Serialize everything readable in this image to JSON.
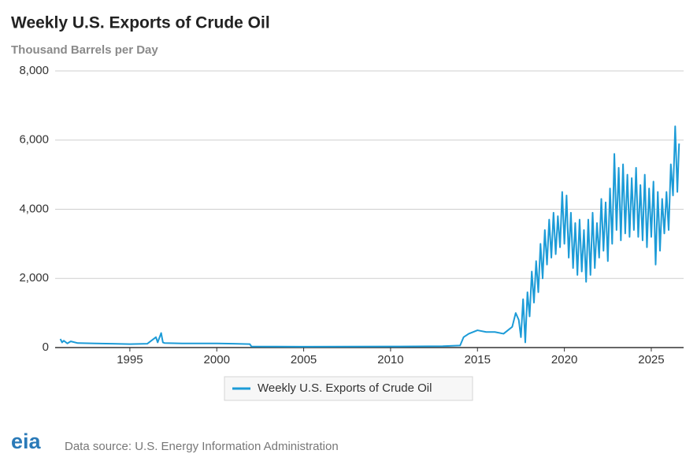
{
  "chart_data": {
    "type": "line",
    "title": "Weekly U.S. Exports of Crude Oil",
    "subtitle": "Thousand Barrels per Day",
    "source": "Data source: U.S. Energy Information Administration",
    "logo": "eia",
    "xlim": [
      1990.7,
      2026.86
    ],
    "xticks": [
      1995,
      2000,
      2005,
      2010,
      2015,
      2020,
      2025
    ],
    "ylim": [
      0,
      8000
    ],
    "yticks": [
      0,
      {
        "value": 2000,
        "label": "2,000"
      },
      {
        "value": 4000,
        "label": "4,000"
      },
      {
        "value": 6000,
        "label": "6,000"
      },
      {
        "value": 8000,
        "label": "8,000"
      }
    ],
    "grid": true,
    "x": [
      1991.0,
      1991.1,
      1991.2,
      1991.4,
      1991.6,
      1992,
      1993,
      1994,
      1995,
      1996,
      1996.5,
      1996.6,
      1996.8,
      1996.9,
      1997,
      1998,
      1999,
      2000,
      2001,
      2001.9,
      2002,
      2005,
      2010,
      2013,
      2014,
      2014.2,
      2014.5,
      2015,
      2015.5,
      2016,
      2016.5,
      2017,
      2017.2,
      2017.375,
      2017.5,
      2017.625,
      2017.75,
      2017.875,
      2018,
      2018.125,
      2018.25,
      2018.375,
      2018.5,
      2018.625,
      2018.75,
      2018.875,
      2019,
      2019.125,
      2019.25,
      2019.375,
      2019.5,
      2019.625,
      2019.75,
      2019.875,
      2020,
      2020.125,
      2020.25,
      2020.375,
      2020.5,
      2020.625,
      2020.75,
      2020.875,
      2021,
      2021.125,
      2021.25,
      2021.375,
      2021.5,
      2021.625,
      2021.75,
      2021.875,
      2022,
      2022.125,
      2022.25,
      2022.375,
      2022.5,
      2022.625,
      2022.75,
      2022.875,
      2023,
      2023.125,
      2023.25,
      2023.375,
      2023.5,
      2023.625,
      2023.75,
      2023.875,
      2024,
      2024.125,
      2024.25,
      2024.375,
      2024.5,
      2024.625,
      2024.75,
      2024.875,
      2025,
      2025.125,
      2025.25,
      2025.375,
      2025.5,
      2025.625,
      2025.75,
      2025.875,
      2026,
      2026.125,
      2026.25,
      2026.375,
      2026.5,
      2026.6
    ],
    "series": [
      {
        "name": "Weekly U.S. Exports of Crude Oil",
        "color": "#1c9bd7",
        "values": [
          250,
          150,
          200,
          120,
          180,
          130,
          120,
          110,
          100,
          110,
          300,
          150,
          420,
          150,
          130,
          120,
          120,
          120,
          110,
          100,
          30,
          25,
          30,
          40,
          60,
          300,
          400,
          500,
          450,
          450,
          400,
          600,
          1000,
          800,
          300,
          1400,
          150,
          1600,
          900,
          2200,
          1300,
          2500,
          1600,
          3000,
          2000,
          3400,
          2400,
          3700,
          2600,
          3900,
          2700,
          3800,
          2900,
          4500,
          3000,
          4400,
          2600,
          3900,
          2300,
          3600,
          2100,
          3700,
          2200,
          3400,
          1900,
          3700,
          2100,
          3900,
          2300,
          3600,
          2600,
          4300,
          2800,
          4200,
          2500,
          4600,
          3000,
          5600,
          3400,
          5200,
          3100,
          5300,
          3300,
          5000,
          3200,
          4900,
          3400,
          5200,
          3200,
          4700,
          3100,
          5000,
          2900,
          4600,
          3200,
          4800,
          2400,
          4500,
          2800,
          4300,
          3300,
          4500,
          3400,
          5300,
          4400,
          6400,
          4500,
          5900
        ]
      }
    ]
  }
}
